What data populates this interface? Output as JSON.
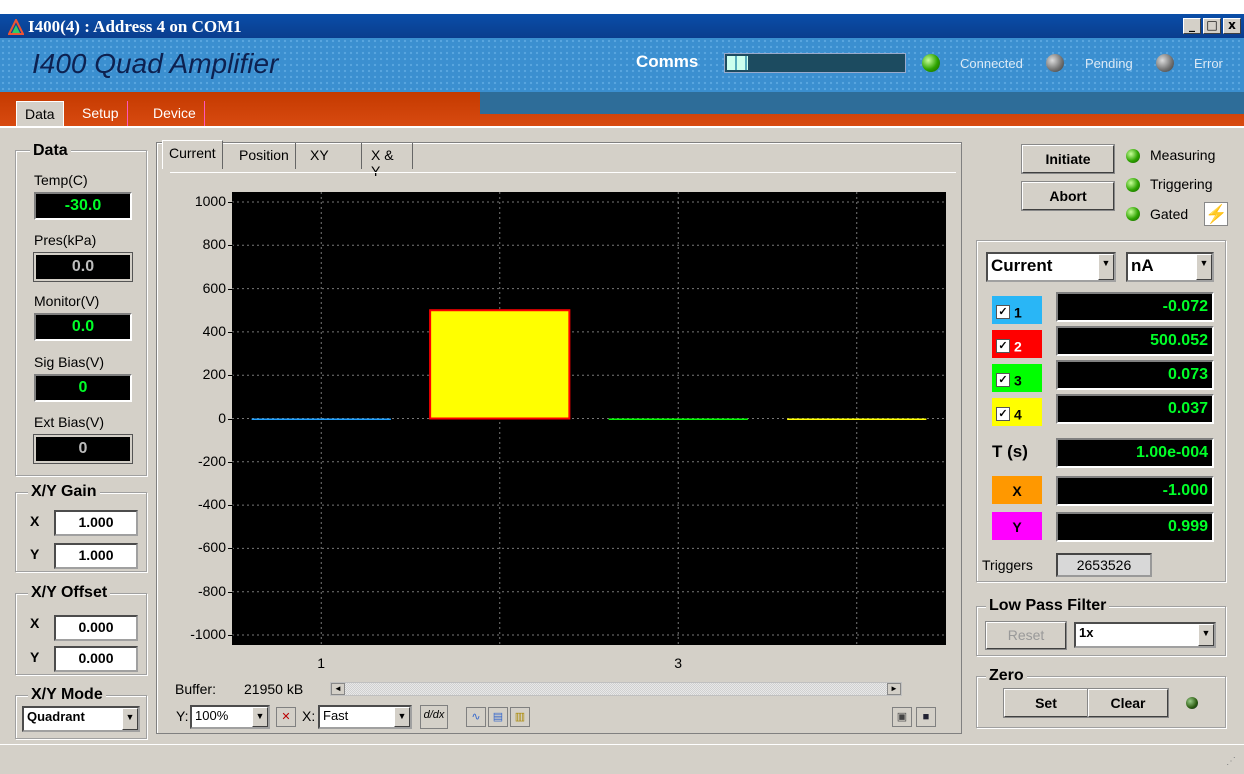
{
  "window": {
    "title": "I400(4) : Address 4 on COM1",
    "minimize": "_",
    "maximize": "□",
    "close": "x"
  },
  "header": {
    "app_title": "I400 Quad Amplifier",
    "comms_label": "Comms",
    "comms_progress": 0.12,
    "indicators": [
      {
        "label": "Connected",
        "state": "green"
      },
      {
        "label": "Pending",
        "state": "grey"
      },
      {
        "label": "Error",
        "state": "grey"
      }
    ]
  },
  "tabs": [
    "Data",
    "Setup",
    "Device"
  ],
  "left": {
    "data_title": "Data",
    "readouts": [
      {
        "label": "Temp(C)",
        "value": "-30.0"
      },
      {
        "label": "Pres(kPa)",
        "value": "0.0"
      },
      {
        "label": "Monitor(V)",
        "value": "0.0"
      },
      {
        "label": "Sig Bias(V)",
        "value": "0"
      },
      {
        "label": "Ext Bias(V)",
        "value": "0"
      }
    ],
    "gain_title": "X/Y Gain",
    "gain_x_label": "X",
    "gain_x": "1.000",
    "gain_y_label": "Y",
    "gain_y": "1.000",
    "offset_title": "X/Y Offset",
    "offset_x_label": "X",
    "offset_x": "0.000",
    "offset_y_label": "Y",
    "offset_y": "0.000",
    "mode_title": "X/Y Mode",
    "mode_value": "Quadrant"
  },
  "chart_tabs": [
    "Current",
    "Position",
    "XY",
    "X & Y"
  ],
  "chart_data": {
    "type": "bar",
    "categories": [
      "1",
      "2",
      "3",
      "4"
    ],
    "series": [
      {
        "values": [
          -0.072,
          500.052,
          0.073,
          0.037
        ]
      }
    ],
    "colors": [
      "#1ea0ff",
      "#ff0000",
      "#00ff00",
      "#ffff00"
    ],
    "xticks": [
      "1",
      "3"
    ],
    "yticks": [
      "1000",
      "800",
      "600",
      "400",
      "200",
      "0",
      "-200",
      "-400",
      "-600",
      "-800",
      "-1000"
    ],
    "ylim": [
      -1000,
      1000
    ],
    "grid": true
  },
  "chart_footer": {
    "buffer_label": "Buffer:",
    "buffer_value": "21950 kB",
    "y_label": "Y:",
    "y_value": "100%",
    "x_label": "X:",
    "x_value": "Fast",
    "deriv_icon": "d/dx"
  },
  "right": {
    "initiate": "Initiate",
    "abort": "Abort",
    "status": [
      {
        "label": "Measuring",
        "state": "green"
      },
      {
        "label": "Triggering",
        "state": "green"
      },
      {
        "label": "Gated",
        "state": "green"
      }
    ],
    "measure": "Current",
    "unit": "nA",
    "channels": [
      {
        "label": "1",
        "value": "-0.072",
        "color": "#29b6f6",
        "checked": true
      },
      {
        "label": "2",
        "value": "500.052",
        "color": "#ff0000",
        "checked": true
      },
      {
        "label": "3",
        "value": "0.073",
        "color": "#00ff00",
        "checked": true
      },
      {
        "label": "4",
        "value": "0.037",
        "color": "#ffff00",
        "checked": true
      }
    ],
    "t_label": "T (s)",
    "t_value": "1.00e-004",
    "x_label": "X",
    "x_value": "-1.000",
    "x_color": "#ff9800",
    "y_label": "Y",
    "y_value": "0.999",
    "y_color": "#ff00ff",
    "triggers_label": "Triggers",
    "triggers_value": "2653526",
    "lpf_title": "Low Pass Filter",
    "lpf_reset": "Reset",
    "lpf_value": "1x",
    "zero_title": "Zero",
    "zero_set": "Set",
    "zero_clear": "Clear"
  }
}
